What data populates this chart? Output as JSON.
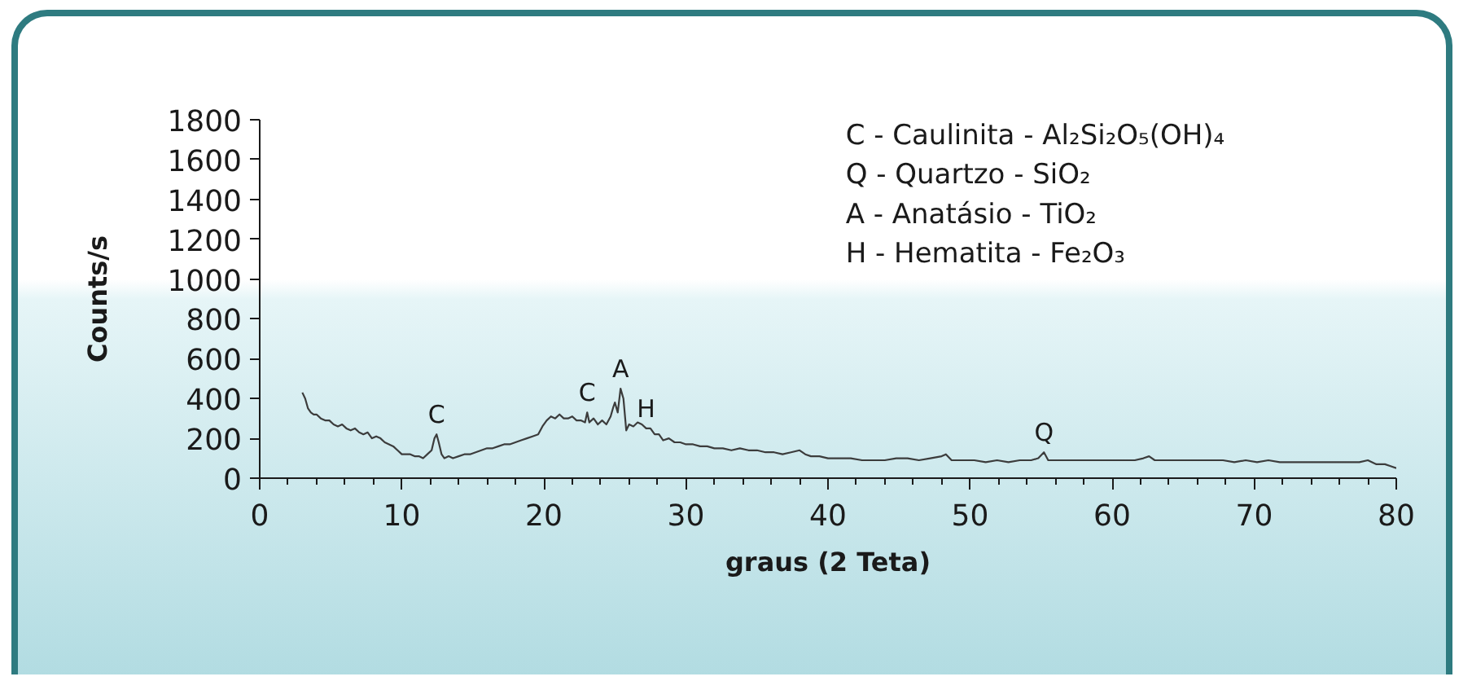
{
  "chart_data": {
    "type": "line",
    "xlabel": "graus (2 Teta)",
    "ylabel": "Counts/s",
    "x": [
      3.0,
      3.2,
      3.4,
      3.6,
      3.8,
      4.0,
      4.3,
      4.6,
      4.9,
      5.2,
      5.5,
      5.8,
      6.1,
      6.4,
      6.7,
      7.0,
      7.3,
      7.6,
      7.9,
      8.2,
      8.5,
      8.8,
      9.1,
      9.4,
      9.7,
      10.0,
      10.3,
      10.6,
      10.9,
      11.2,
      11.5,
      11.8,
      12.1,
      12.3,
      12.45,
      12.6,
      12.8,
      13.0,
      13.3,
      13.6,
      14.0,
      14.4,
      14.8,
      15.2,
      15.6,
      16.0,
      16.4,
      16.8,
      17.2,
      17.6,
      18.0,
      18.4,
      18.8,
      19.2,
      19.6,
      19.9,
      20.2,
      20.5,
      20.8,
      21.1,
      21.4,
      21.7,
      22.0,
      22.3,
      22.6,
      22.9,
      23.05,
      23.2,
      23.5,
      23.8,
      24.1,
      24.4,
      24.7,
      24.9,
      25.0,
      25.2,
      25.4,
      25.6,
      25.8,
      26.0,
      26.3,
      26.6,
      26.9,
      27.2,
      27.5,
      27.8,
      28.1,
      28.4,
      28.8,
      29.2,
      29.6,
      30.0,
      30.5,
      31.0,
      31.5,
      32.0,
      32.6,
      33.2,
      33.8,
      34.4,
      35.0,
      35.6,
      36.2,
      36.8,
      37.4,
      38.0,
      38.4,
      38.8,
      39.4,
      40.0,
      40.8,
      41.6,
      42.4,
      43.2,
      44.0,
      44.8,
      45.6,
      46.4,
      47.2,
      48.0,
      48.3,
      48.7,
      49.5,
      50.3,
      51.1,
      51.9,
      52.7,
      53.5,
      54.3,
      54.8,
      55.2,
      55.5,
      56.0,
      56.8,
      57.6,
      58.4,
      59.2,
      60.0,
      60.8,
      61.6,
      62.2,
      62.6,
      63.0,
      63.8,
      64.6,
      65.4,
      66.2,
      67.0,
      67.8,
      68.6,
      69.4,
      70.2,
      71.0,
      71.8,
      72.6,
      73.4,
      74.2,
      75.0,
      75.8,
      76.6,
      77.4,
      78.0,
      78.6,
      79.2,
      79.6,
      80.0
    ],
    "series": [
      {
        "color": "#3c3c3c",
        "values": [
          430,
          400,
          350,
          330,
          320,
          320,
          300,
          290,
          290,
          270,
          260,
          270,
          250,
          240,
          250,
          230,
          220,
          230,
          200,
          210,
          200,
          180,
          170,
          160,
          140,
          120,
          120,
          120,
          110,
          110,
          100,
          120,
          140,
          200,
          220,
          180,
          120,
          100,
          110,
          100,
          110,
          120,
          120,
          130,
          140,
          150,
          150,
          160,
          170,
          170,
          180,
          190,
          200,
          210,
          220,
          260,
          290,
          310,
          300,
          320,
          300,
          300,
          310,
          290,
          290,
          280,
          330,
          280,
          300,
          270,
          290,
          270,
          310,
          360,
          380,
          330,
          450,
          400,
          240,
          270,
          260,
          280,
          270,
          250,
          250,
          220,
          220,
          190,
          200,
          180,
          180,
          170,
          170,
          160,
          160,
          150,
          150,
          140,
          150,
          140,
          140,
          130,
          130,
          120,
          130,
          140,
          120,
          110,
          110,
          100,
          100,
          100,
          90,
          90,
          90,
          100,
          100,
          90,
          100,
          110,
          120,
          90,
          90,
          90,
          80,
          90,
          80,
          90,
          90,
          100,
          130,
          90,
          90,
          90,
          90,
          90,
          90,
          90,
          90,
          90,
          100,
          110,
          90,
          90,
          90,
          90,
          90,
          90,
          90,
          80,
          90,
          80,
          90,
          80,
          80,
          80,
          80,
          80,
          80,
          80,
          80,
          90,
          70,
          70,
          60,
          50
        ]
      }
    ],
    "xlim": [
      0,
      80
    ],
    "ylim": [
      0,
      1800
    ],
    "xticks": [
      0,
      {
        "value": 2,
        "label": null
      },
      {
        "value": 4,
        "label": null
      },
      {
        "value": 6,
        "label": null
      },
      {
        "value": 8,
        "label": null
      },
      10,
      {
        "value": 12,
        "label": null
      },
      {
        "value": 14,
        "label": null
      },
      {
        "value": 16,
        "label": null
      },
      {
        "value": 18,
        "label": null
      },
      20,
      {
        "value": 22,
        "label": null
      },
      {
        "value": 24,
        "label": null
      },
      {
        "value": 26,
        "label": null
      },
      {
        "value": 28,
        "label": null
      },
      30,
      {
        "value": 32,
        "label": null
      },
      {
        "value": 34,
        "label": null
      },
      {
        "value": 36,
        "label": null
      },
      {
        "value": 38,
        "label": null
      },
      40,
      {
        "value": 42,
        "label": null
      },
      {
        "value": 44,
        "label": null
      },
      {
        "value": 46,
        "label": null
      },
      {
        "value": 48,
        "label": null
      },
      50,
      {
        "value": 52,
        "label": null
      },
      {
        "value": 54,
        "label": null
      },
      {
        "value": 56,
        "label": null
      },
      {
        "value": 58,
        "label": null
      },
      60,
      {
        "value": 62,
        "label": null
      },
      {
        "value": 64,
        "label": null
      },
      {
        "value": 66,
        "label": null
      },
      {
        "value": 68,
        "label": null
      },
      70,
      {
        "value": 72,
        "label": null
      },
      {
        "value": 74,
        "label": null
      },
      {
        "value": 76,
        "label": null
      },
      {
        "value": 78,
        "label": null
      },
      80
    ],
    "yticks": [
      0,
      200,
      400,
      600,
      800,
      1000,
      1200,
      1400,
      1600,
      1800
    ],
    "grid": false,
    "line_style": "solid",
    "annotations": [
      "C - Caulinita - Al₂Si₂O₅(OH)₄",
      "Q - Quartzo - SiO₂",
      "A - Anatásio - TiO₂",
      "H - Hematita - Fe₂O₃",
      {
        "text": "C",
        "x": 12.45,
        "y": 220
      },
      {
        "text": "C",
        "x": 23.05,
        "y": 330
      },
      {
        "text": "A",
        "x": 25.4,
        "y": 450
      },
      {
        "text": "H",
        "x": 27.2,
        "y": 250
      },
      {
        "text": "Q",
        "x": 55.2,
        "y": 130
      }
    ]
  }
}
